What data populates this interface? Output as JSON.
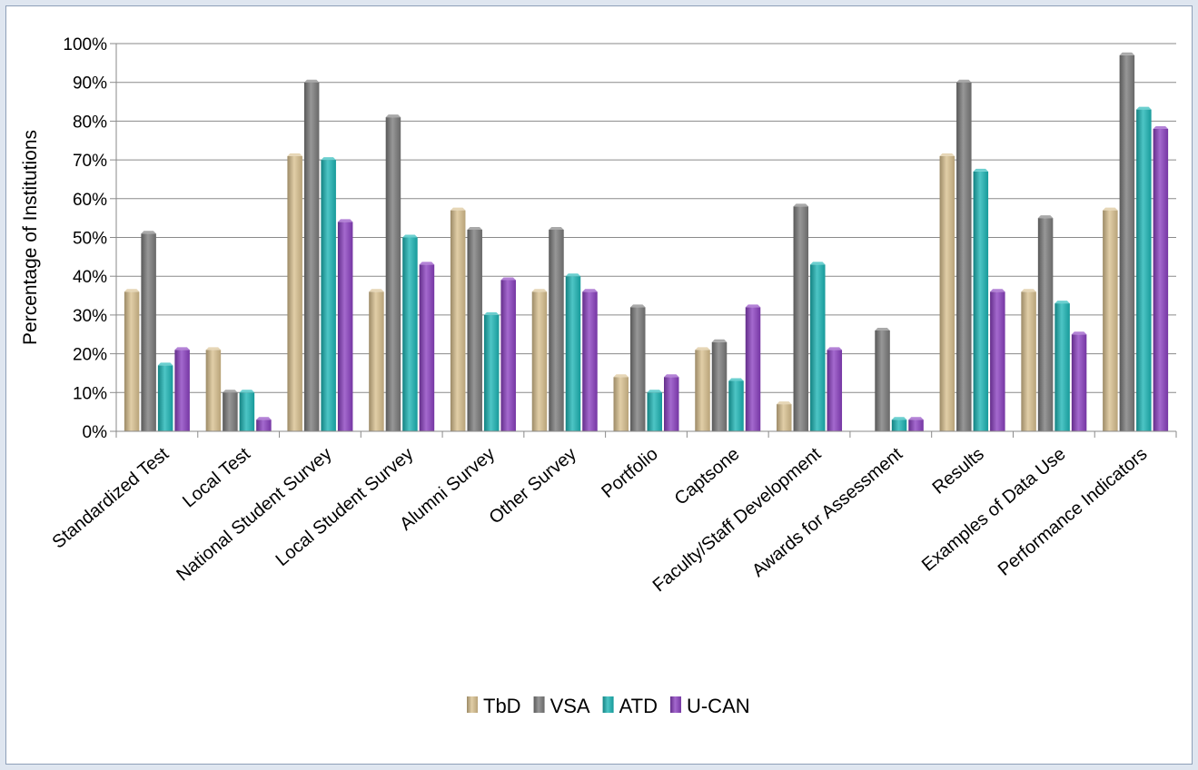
{
  "chart_data": {
    "type": "bar",
    "ylabel": "Percentage of Institutions",
    "xlabel": "",
    "ylim": [
      0,
      100
    ],
    "y_ticks": [
      "0%",
      "10%",
      "20%",
      "30%",
      "40%",
      "50%",
      "60%",
      "70%",
      "80%",
      "90%",
      "100%"
    ],
    "grid": true,
    "legend_position": "bottom",
    "categories": [
      "Standardized Test",
      "Local Test",
      "National Student Survey",
      "Local Student Survey",
      "Alumni Survey",
      "Other Survey",
      "Portfolio",
      "Captsone",
      "Faculty/Staff Development",
      "Awards for Assessment",
      "Results",
      "Examples of Data Use",
      "Performance Indicators"
    ],
    "series": [
      {
        "name": "TbD",
        "color": "#d9c08e",
        "values": [
          36,
          21,
          71,
          36,
          57,
          36,
          14,
          21,
          7,
          0,
          71,
          36,
          57
        ]
      },
      {
        "name": "VSA",
        "color": "#7a7a7a",
        "values": [
          51,
          10,
          90,
          81,
          52,
          52,
          32,
          23,
          58,
          26,
          90,
          55,
          97
        ]
      },
      {
        "name": "ATD",
        "color": "#1bb5b5",
        "values": [
          17,
          10,
          70,
          50,
          30,
          40,
          10,
          13,
          43,
          3,
          67,
          33,
          83
        ]
      },
      {
        "name": "U-CAN",
        "color": "#8a3fc0",
        "values": [
          21,
          3,
          54,
          43,
          39,
          36,
          14,
          32,
          21,
          3,
          36,
          25,
          78
        ]
      }
    ]
  }
}
